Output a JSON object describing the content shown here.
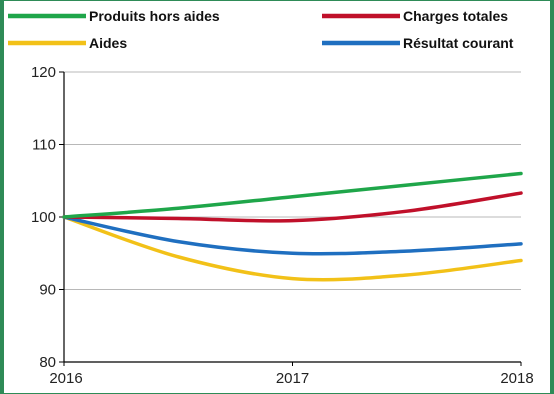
{
  "chart_data": {
    "type": "line",
    "title": "",
    "xlabel": "",
    "ylabel": "",
    "x": [
      "2016",
      "2016.5",
      "2017",
      "2017.5",
      "2018"
    ],
    "x_ticks": [
      "2016",
      "2017",
      "2018"
    ],
    "y_ticks": [
      "80",
      "90",
      "100",
      "110",
      "120"
    ],
    "ylim": [
      80,
      120
    ],
    "grid": "horizontal",
    "legend_position": "top",
    "series": [
      {
        "name": "Produits hors aides",
        "color": "#1fa64a",
        "values": [
          100,
          101.2,
          102.8,
          104.4,
          106
        ]
      },
      {
        "name": "Charges totales",
        "color": "#c0102a",
        "values": [
          100,
          99.8,
          99.5,
          100.8,
          103.3
        ]
      },
      {
        "name": "Aides",
        "color": "#f2c118",
        "values": [
          100,
          94.5,
          91.5,
          92,
          94
        ]
      },
      {
        "name": "Résultat courant",
        "color": "#1f6fc0",
        "values": [
          100,
          96.6,
          95,
          95.3,
          96.3
        ]
      }
    ]
  }
}
